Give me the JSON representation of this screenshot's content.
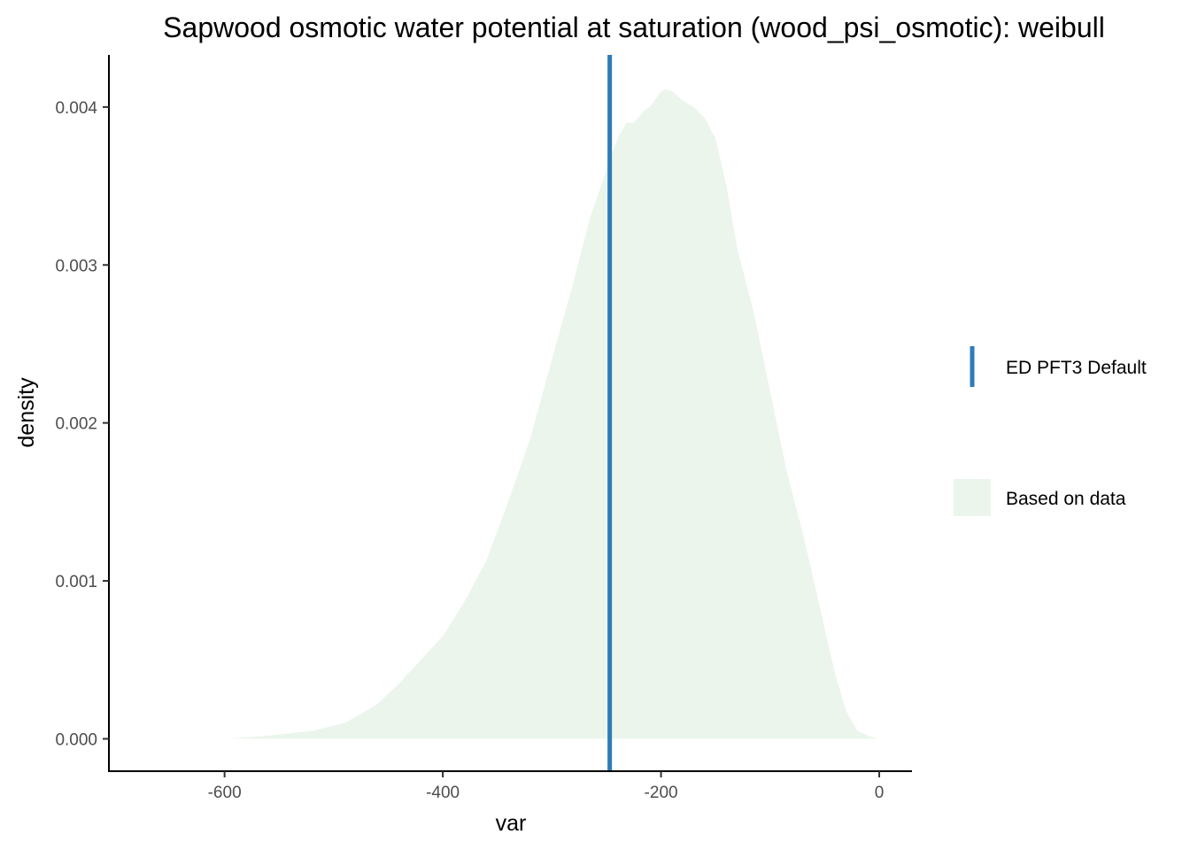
{
  "chart_data": {
    "type": "area",
    "title": "Sapwood osmotic water potential at saturation (wood_psi_osmotic): weibull",
    "xlabel": "var",
    "ylabel": "density",
    "xlim": [
      -706,
      30
    ],
    "ylim": [
      -0.000205,
      0.00433
    ],
    "x_ticks": [
      -600,
      -400,
      -200,
      0
    ],
    "x_tick_labels": [
      "-600",
      "-400",
      "-200",
      "0"
    ],
    "y_ticks": [
      0.0,
      0.001,
      0.002,
      0.003,
      0.004
    ],
    "y_tick_labels": [
      "0.000",
      "0.001",
      "0.002",
      "0.003",
      "0.004"
    ],
    "grid": false,
    "legend_position": "right",
    "series": [
      {
        "name": "Based on data",
        "kind": "density",
        "color": "#ebf5ec",
        "x": [
          -597,
          -560,
          -520,
          -490,
          -460,
          -440,
          -420,
          -400,
          -380,
          -370,
          -360,
          -340,
          -320,
          -300,
          -280,
          -265,
          -250,
          -240,
          -232,
          -225,
          -215,
          -210,
          -200,
          -196,
          -190,
          -180,
          -170,
          -160,
          -150,
          -140,
          -130,
          -115,
          -100,
          -85,
          -70,
          -60,
          -50,
          -40,
          -30,
          -20,
          -10,
          -2
        ],
        "y": [
          0.0,
          2e-05,
          5e-05,
          0.0001,
          0.00022,
          0.00035,
          0.0005,
          0.00065,
          0.00087,
          0.001,
          0.00113,
          0.0015,
          0.0019,
          0.0024,
          0.0029,
          0.0033,
          0.0036,
          0.0038,
          0.0039,
          0.0039,
          0.00398,
          0.004,
          0.0041,
          0.00411,
          0.0041,
          0.00404,
          0.004,
          0.00393,
          0.0038,
          0.0035,
          0.0031,
          0.0027,
          0.0022,
          0.0017,
          0.0013,
          0.001,
          0.0007,
          0.0004,
          0.00017,
          5e-05,
          2e-05,
          0.0
        ]
      },
      {
        "name": "ED PFT3 Default",
        "kind": "vline",
        "color": "#2f7bb7",
        "x": -247
      }
    ],
    "legend": [
      {
        "label": "ED PFT3 Default",
        "kind": "line",
        "color": "#2f7bb7"
      },
      {
        "label": "Based on data",
        "kind": "fill",
        "color": "#ebf5ec"
      }
    ]
  }
}
